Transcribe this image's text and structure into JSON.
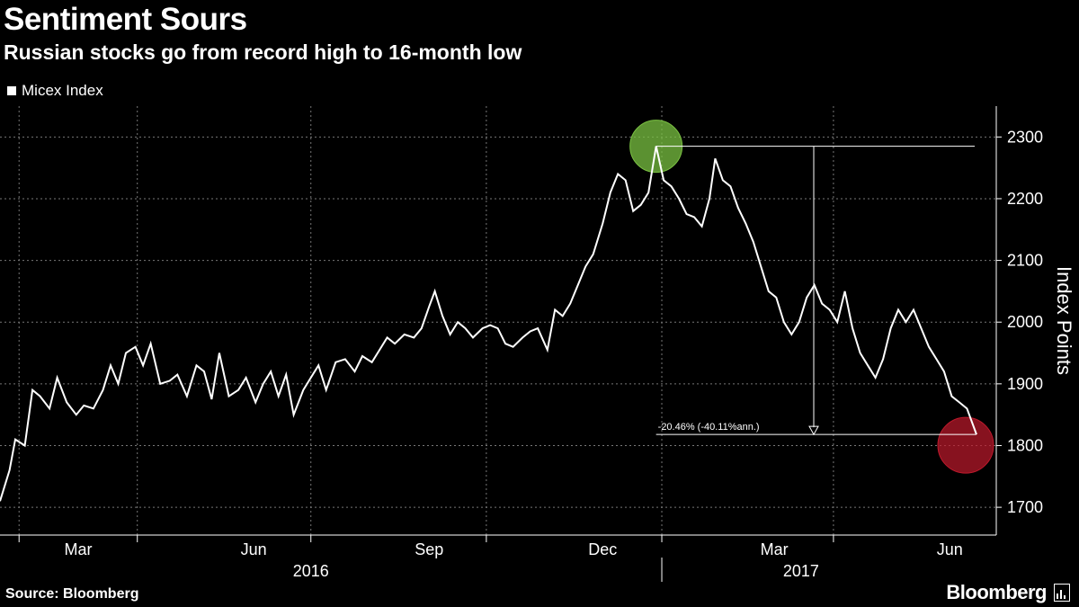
{
  "header": {
    "title": "Sentiment Sours",
    "subtitle": "Russian stocks go from record high to 16-month low"
  },
  "legend": {
    "label": "Micex Index",
    "color": "#ffffff"
  },
  "footer": {
    "source": "Source: Bloomberg",
    "brand": "Bloomberg"
  },
  "chart_data": {
    "type": "line",
    "ylabel": "Index Points",
    "ylim": [
      1655,
      2350
    ],
    "yticks": [
      1700,
      1800,
      1900,
      2000,
      2100,
      2200,
      2300
    ],
    "x_range": [
      "2016-01-20",
      "2017-06-15"
    ],
    "x_month_labels": [
      {
        "label": "Mar",
        "date": "2016-03-01"
      },
      {
        "label": "Jun",
        "date": "2016-06-01"
      },
      {
        "label": "Sep",
        "date": "2016-09-01"
      },
      {
        "label": "Dec",
        "date": "2016-12-01"
      },
      {
        "label": "Mar",
        "date": "2017-03-01"
      },
      {
        "label": "Jun",
        "date": "2017-06-01"
      }
    ],
    "x_year_labels": [
      {
        "label": "2016",
        "date": "2016-07-01"
      },
      {
        "label": "2017",
        "date": "2017-03-15"
      }
    ],
    "grid": true,
    "series": [
      {
        "name": "Micex Index",
        "color": "#ffffff",
        "points": [
          [
            "2016-01-20",
            1710
          ],
          [
            "2016-01-25",
            1760
          ],
          [
            "2016-01-28",
            1810
          ],
          [
            "2016-02-02",
            1800
          ],
          [
            "2016-02-06",
            1890
          ],
          [
            "2016-02-10",
            1880
          ],
          [
            "2016-02-15",
            1860
          ],
          [
            "2016-02-19",
            1910
          ],
          [
            "2016-02-24",
            1870
          ],
          [
            "2016-02-29",
            1850
          ],
          [
            "2016-03-04",
            1865
          ],
          [
            "2016-03-09",
            1860
          ],
          [
            "2016-03-14",
            1890
          ],
          [
            "2016-03-18",
            1930
          ],
          [
            "2016-03-22",
            1900
          ],
          [
            "2016-03-26",
            1950
          ],
          [
            "2016-03-31",
            1960
          ],
          [
            "2016-04-04",
            1930
          ],
          [
            "2016-04-08",
            1965
          ],
          [
            "2016-04-13",
            1900
          ],
          [
            "2016-04-18",
            1905
          ],
          [
            "2016-04-22",
            1915
          ],
          [
            "2016-04-27",
            1880
          ],
          [
            "2016-05-02",
            1930
          ],
          [
            "2016-05-06",
            1920
          ],
          [
            "2016-05-10",
            1875
          ],
          [
            "2016-05-14",
            1950
          ],
          [
            "2016-05-19",
            1880
          ],
          [
            "2016-05-24",
            1890
          ],
          [
            "2016-05-28",
            1910
          ],
          [
            "2016-06-02",
            1870
          ],
          [
            "2016-06-06",
            1900
          ],
          [
            "2016-06-10",
            1920
          ],
          [
            "2016-06-14",
            1880
          ],
          [
            "2016-06-18",
            1915
          ],
          [
            "2016-06-22",
            1850
          ],
          [
            "2016-06-27",
            1890
          ],
          [
            "2016-07-01",
            1910
          ],
          [
            "2016-07-05",
            1930
          ],
          [
            "2016-07-09",
            1890
          ],
          [
            "2016-07-14",
            1935
          ],
          [
            "2016-07-19",
            1940
          ],
          [
            "2016-07-24",
            1920
          ],
          [
            "2016-07-28",
            1945
          ],
          [
            "2016-08-02",
            1935
          ],
          [
            "2016-08-06",
            1955
          ],
          [
            "2016-08-10",
            1975
          ],
          [
            "2016-08-14",
            1965
          ],
          [
            "2016-08-19",
            1980
          ],
          [
            "2016-08-24",
            1975
          ],
          [
            "2016-08-28",
            1990
          ],
          [
            "2016-09-01",
            2025
          ],
          [
            "2016-09-04",
            2050
          ],
          [
            "2016-09-08",
            2010
          ],
          [
            "2016-09-12",
            1980
          ],
          [
            "2016-09-16",
            2000
          ],
          [
            "2016-09-20",
            1990
          ],
          [
            "2016-09-24",
            1975
          ],
          [
            "2016-09-29",
            1990
          ],
          [
            "2016-10-03",
            1995
          ],
          [
            "2016-10-07",
            1990
          ],
          [
            "2016-10-11",
            1965
          ],
          [
            "2016-10-15",
            1960
          ],
          [
            "2016-10-20",
            1975
          ],
          [
            "2016-10-24",
            1985
          ],
          [
            "2016-10-28",
            1990
          ],
          [
            "2016-11-02",
            1955
          ],
          [
            "2016-11-06",
            2020
          ],
          [
            "2016-11-10",
            2010
          ],
          [
            "2016-11-14",
            2030
          ],
          [
            "2016-11-18",
            2060
          ],
          [
            "2016-11-22",
            2090
          ],
          [
            "2016-11-26",
            2110
          ],
          [
            "2016-12-01",
            2160
          ],
          [
            "2016-12-05",
            2210
          ],
          [
            "2016-12-09",
            2240
          ],
          [
            "2016-12-13",
            2230
          ],
          [
            "2016-12-17",
            2180
          ],
          [
            "2016-12-21",
            2190
          ],
          [
            "2016-12-25",
            2210
          ],
          [
            "2016-12-29",
            2285
          ],
          [
            "2017-01-02",
            2230
          ],
          [
            "2017-01-06",
            2220
          ],
          [
            "2017-01-10",
            2200
          ],
          [
            "2017-01-14",
            2175
          ],
          [
            "2017-01-18",
            2170
          ],
          [
            "2017-01-22",
            2155
          ],
          [
            "2017-01-26",
            2200
          ],
          [
            "2017-01-29",
            2265
          ],
          [
            "2017-02-02",
            2230
          ],
          [
            "2017-02-06",
            2220
          ],
          [
            "2017-02-10",
            2185
          ],
          [
            "2017-02-14",
            2160
          ],
          [
            "2017-02-18",
            2130
          ],
          [
            "2017-02-22",
            2090
          ],
          [
            "2017-02-26",
            2050
          ],
          [
            "2017-03-02",
            2040
          ],
          [
            "2017-03-06",
            2000
          ],
          [
            "2017-03-10",
            1980
          ],
          [
            "2017-03-14",
            2000
          ],
          [
            "2017-03-18",
            2040
          ],
          [
            "2017-03-22",
            2060
          ],
          [
            "2017-03-26",
            2030
          ],
          [
            "2017-03-30",
            2020
          ],
          [
            "2017-04-03",
            2000
          ],
          [
            "2017-04-07",
            2050
          ],
          [
            "2017-04-11",
            1990
          ],
          [
            "2017-04-15",
            1950
          ],
          [
            "2017-04-19",
            1930
          ],
          [
            "2017-04-23",
            1910
          ],
          [
            "2017-04-27",
            1940
          ],
          [
            "2017-05-01",
            1990
          ],
          [
            "2017-05-05",
            2020
          ],
          [
            "2017-05-09",
            2000
          ],
          [
            "2017-05-13",
            2020
          ],
          [
            "2017-05-17",
            1990
          ],
          [
            "2017-05-21",
            1960
          ],
          [
            "2017-05-25",
            1940
          ],
          [
            "2017-05-29",
            1920
          ],
          [
            "2017-06-02",
            1880
          ],
          [
            "2017-06-06",
            1870
          ],
          [
            "2017-06-10",
            1860
          ],
          [
            "2017-06-15",
            1818
          ]
        ]
      }
    ],
    "annotations": {
      "high": {
        "date": "2016-12-29",
        "value": 2285,
        "color": "#7ac142"
      },
      "low": {
        "date": "2017-06-15",
        "value": 1818,
        "color": "#c0192c"
      },
      "change_label": "-20.46% (-40.11%ann.)"
    }
  }
}
